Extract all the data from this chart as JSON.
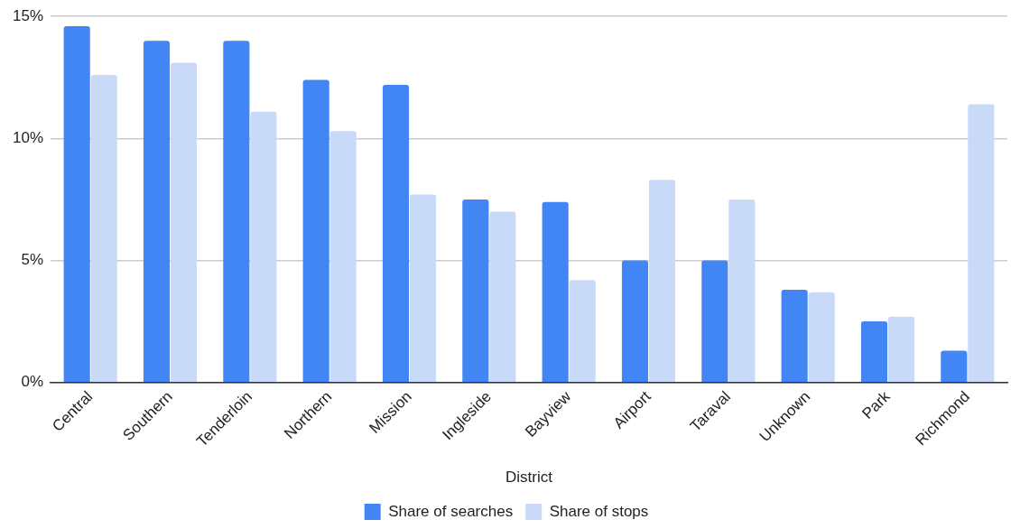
{
  "chart_data": {
    "type": "bar",
    "xlabel": "District",
    "categories": [
      "Central",
      "Southern",
      "Tenderloin",
      "Northern",
      "Mission",
      "Ingleside",
      "Bayview",
      "Airport",
      "Taraval",
      "Unknown",
      "Park",
      "Richmond"
    ],
    "series": [
      {
        "name": "Share of searches",
        "color": "#4285f4",
        "values": [
          14.6,
          14.0,
          14.0,
          12.4,
          12.2,
          7.5,
          7.4,
          5.0,
          5.0,
          3.8,
          2.5,
          1.3
        ]
      },
      {
        "name": "Share of stops",
        "color": "#c9daf8",
        "values": [
          12.6,
          13.1,
          11.1,
          10.3,
          7.7,
          7.0,
          4.2,
          8.3,
          7.5,
          3.7,
          2.7,
          11.4
        ]
      }
    ],
    "ylim": [
      0,
      15
    ],
    "yticks": [
      {
        "value": 0,
        "label": "0%"
      },
      {
        "value": 5,
        "label": "5%"
      },
      {
        "value": 10,
        "label": "10%"
      },
      {
        "value": 15,
        "label": "15%"
      }
    ],
    "grid": "y",
    "legend": "bottom"
  }
}
